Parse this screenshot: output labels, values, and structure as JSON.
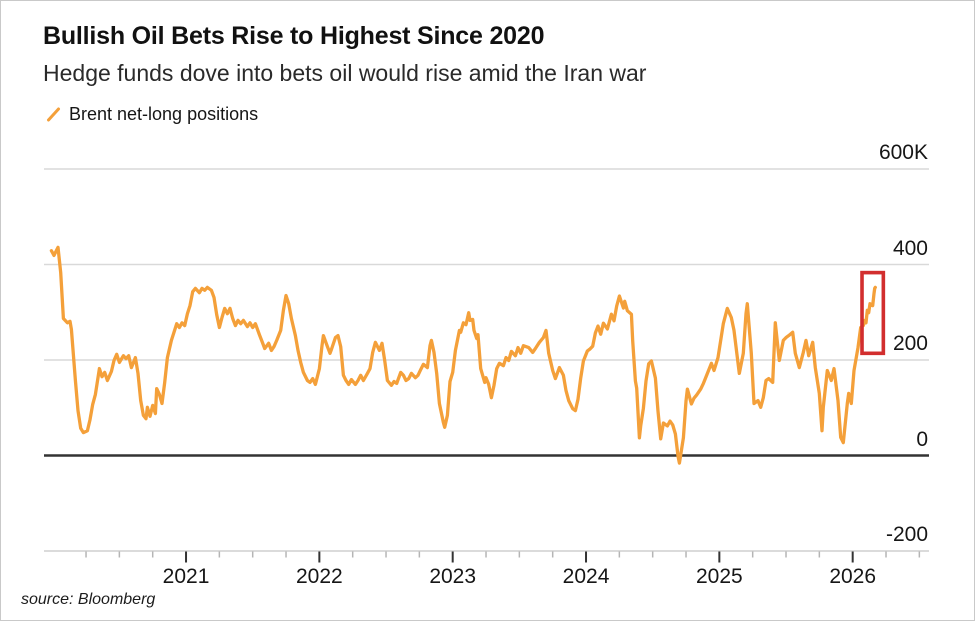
{
  "header": {
    "title": "Bullish Oil Bets Rise to Highest Since 2020",
    "subtitle": "Hedge funds dove into bets oil would rise amid the Iran war"
  },
  "legend": {
    "marker_icon": "slash-icon",
    "label": "Brent net-long positions"
  },
  "source": "source: Bloomberg",
  "colors": {
    "series": "#F4A03A",
    "highlight_box": "#D22E2E",
    "gridline": "#d9d9d9",
    "zero_line": "#333333",
    "axis_line": "#cfcfcf",
    "minor_tick": "#b5b5b5",
    "major_tick": "#333333"
  },
  "chart_data": {
    "type": "line",
    "title": "Bullish Oil Bets Rise to Highest Since 2020",
    "subtitle": "Hedge funds dove into bets oil would rise amid the Iran war",
    "unit": "thousand contracts (K)",
    "grid": "horizontal",
    "legend_position": "top-left",
    "xlim": [
      2019.95,
      2026.6
    ],
    "ylim": [
      -280,
      620
    ],
    "x_axis": {
      "tick_years": [
        2021,
        2022,
        2023,
        2024,
        2025,
        2026
      ],
      "minor_tick_interval_years": 0.25
    },
    "y_axis": {
      "ticks": [
        {
          "value": 600,
          "label": "600K"
        },
        {
          "value": 400,
          "label": "400"
        },
        {
          "value": 200,
          "label": "200"
        },
        {
          "value": 0,
          "label": "0"
        },
        {
          "value": -200,
          "label": "-200"
        }
      ]
    },
    "annotation": {
      "name": "recent-surge-highlight",
      "type": "highlight-box",
      "x_range": [
        2026.07,
        2026.23
      ],
      "value_range": [
        214,
        383
      ]
    },
    "series": [
      {
        "name": "Brent net-long positions",
        "points": [
          [
            2019.99,
            429
          ],
          [
            2020.01,
            419
          ],
          [
            2020.04,
            436
          ],
          [
            2020.06,
            383
          ],
          [
            2020.08,
            287
          ],
          [
            2020.11,
            278
          ],
          [
            2020.13,
            281
          ],
          [
            2020.14,
            264
          ],
          [
            2020.17,
            157
          ],
          [
            2020.19,
            94
          ],
          [
            2020.21,
            57
          ],
          [
            2020.23,
            48
          ],
          [
            2020.26,
            52
          ],
          [
            2020.28,
            75
          ],
          [
            2020.3,
            107
          ],
          [
            2020.32,
            128
          ],
          [
            2020.35,
            182
          ],
          [
            2020.37,
            165
          ],
          [
            2020.39,
            174
          ],
          [
            2020.41,
            157
          ],
          [
            2020.44,
            176
          ],
          [
            2020.46,
            199
          ],
          [
            2020.48,
            212
          ],
          [
            2020.5,
            195
          ],
          [
            2020.53,
            209
          ],
          [
            2020.55,
            203
          ],
          [
            2020.57,
            209
          ],
          [
            2020.59,
            184
          ],
          [
            2020.62,
            205
          ],
          [
            2020.64,
            172
          ],
          [
            2020.66,
            115
          ],
          [
            2020.68,
            84
          ],
          [
            2020.7,
            77
          ],
          [
            2020.71,
            101
          ],
          [
            2020.73,
            82
          ],
          [
            2020.75,
            105
          ],
          [
            2020.77,
            88
          ],
          [
            2020.78,
            140
          ],
          [
            2020.8,
            128
          ],
          [
            2020.82,
            109
          ],
          [
            2020.84,
            153
          ],
          [
            2020.86,
            205
          ],
          [
            2020.89,
            241
          ],
          [
            2020.91,
            258
          ],
          [
            2020.93,
            276
          ],
          [
            2020.95,
            268
          ],
          [
            2020.97,
            278
          ],
          [
            2020.99,
            272
          ],
          [
            2021.01,
            297
          ],
          [
            2021.03,
            314
          ],
          [
            2021.05,
            343
          ],
          [
            2021.07,
            350
          ],
          [
            2021.1,
            341
          ],
          [
            2021.12,
            350
          ],
          [
            2021.14,
            346
          ],
          [
            2021.16,
            352
          ],
          [
            2021.19,
            346
          ],
          [
            2021.21,
            331
          ],
          [
            2021.23,
            295
          ],
          [
            2021.25,
            268
          ],
          [
            2021.27,
            289
          ],
          [
            2021.29,
            308
          ],
          [
            2021.31,
            297
          ],
          [
            2021.33,
            308
          ],
          [
            2021.35,
            287
          ],
          [
            2021.37,
            272
          ],
          [
            2021.39,
            283
          ],
          [
            2021.41,
            276
          ],
          [
            2021.43,
            283
          ],
          [
            2021.46,
            270
          ],
          [
            2021.48,
            278
          ],
          [
            2021.5,
            268
          ],
          [
            2021.52,
            276
          ],
          [
            2021.55,
            253
          ],
          [
            2021.57,
            239
          ],
          [
            2021.59,
            224
          ],
          [
            2021.62,
            235
          ],
          [
            2021.64,
            220
          ],
          [
            2021.66,
            228
          ],
          [
            2021.68,
            241
          ],
          [
            2021.71,
            262
          ],
          [
            2021.73,
            304
          ],
          [
            2021.75,
            335
          ],
          [
            2021.77,
            318
          ],
          [
            2021.79,
            287
          ],
          [
            2021.82,
            251
          ],
          [
            2021.84,
            220
          ],
          [
            2021.86,
            195
          ],
          [
            2021.88,
            174
          ],
          [
            2021.91,
            157
          ],
          [
            2021.93,
            153
          ],
          [
            2021.95,
            161
          ],
          [
            2021.97,
            149
          ],
          [
            2022.0,
            182
          ],
          [
            2022.02,
            230
          ],
          [
            2022.03,
            251
          ],
          [
            2022.06,
            228
          ],
          [
            2022.08,
            214
          ],
          [
            2022.09,
            222
          ],
          [
            2022.12,
            247
          ],
          [
            2022.14,
            251
          ],
          [
            2022.16,
            228
          ],
          [
            2022.18,
            168
          ],
          [
            2022.2,
            157
          ],
          [
            2022.22,
            149
          ],
          [
            2022.24,
            159
          ],
          [
            2022.27,
            149
          ],
          [
            2022.29,
            157
          ],
          [
            2022.31,
            168
          ],
          [
            2022.33,
            157
          ],
          [
            2022.36,
            172
          ],
          [
            2022.38,
            182
          ],
          [
            2022.4,
            216
          ],
          [
            2022.42,
            237
          ],
          [
            2022.45,
            220
          ],
          [
            2022.47,
            235
          ],
          [
            2022.49,
            199
          ],
          [
            2022.51,
            157
          ],
          [
            2022.54,
            147
          ],
          [
            2022.56,
            155
          ],
          [
            2022.58,
            151
          ],
          [
            2022.61,
            174
          ],
          [
            2022.63,
            168
          ],
          [
            2022.65,
            157
          ],
          [
            2022.67,
            161
          ],
          [
            2022.69,
            172
          ],
          [
            2022.72,
            163
          ],
          [
            2022.74,
            168
          ],
          [
            2022.76,
            180
          ],
          [
            2022.78,
            191
          ],
          [
            2022.81,
            184
          ],
          [
            2022.83,
            230
          ],
          [
            2022.84,
            241
          ],
          [
            2022.86,
            216
          ],
          [
            2022.88,
            172
          ],
          [
            2022.9,
            109
          ],
          [
            2022.93,
            69
          ],
          [
            2022.94,
            59
          ],
          [
            2022.96,
            84
          ],
          [
            2022.98,
            155
          ],
          [
            2023.0,
            174
          ],
          [
            2023.02,
            220
          ],
          [
            2023.05,
            262
          ],
          [
            2023.06,
            258
          ],
          [
            2023.08,
            278
          ],
          [
            2023.1,
            274
          ],
          [
            2023.12,
            299
          ],
          [
            2023.13,
            283
          ],
          [
            2023.15,
            285
          ],
          [
            2023.16,
            262
          ],
          [
            2023.18,
            245
          ],
          [
            2023.19,
            253
          ],
          [
            2023.21,
            182
          ],
          [
            2023.24,
            153
          ],
          [
            2023.25,
            163
          ],
          [
            2023.27,
            149
          ],
          [
            2023.29,
            121
          ],
          [
            2023.31,
            147
          ],
          [
            2023.33,
            182
          ],
          [
            2023.35,
            193
          ],
          [
            2023.38,
            188
          ],
          [
            2023.4,
            205
          ],
          [
            2023.42,
            199
          ],
          [
            2023.44,
            218
          ],
          [
            2023.47,
            209
          ],
          [
            2023.49,
            226
          ],
          [
            2023.51,
            214
          ],
          [
            2023.53,
            230
          ],
          [
            2023.57,
            226
          ],
          [
            2023.6,
            216
          ],
          [
            2023.62,
            224
          ],
          [
            2023.65,
            237
          ],
          [
            2023.68,
            247
          ],
          [
            2023.7,
            262
          ],
          [
            2023.72,
            214
          ],
          [
            2023.75,
            178
          ],
          [
            2023.77,
            161
          ],
          [
            2023.8,
            184
          ],
          [
            2023.83,
            168
          ],
          [
            2023.85,
            136
          ],
          [
            2023.87,
            115
          ],
          [
            2023.9,
            98
          ],
          [
            2023.92,
            94
          ],
          [
            2023.94,
            118
          ],
          [
            2023.96,
            162
          ],
          [
            2023.98,
            198
          ],
          [
            2024.01,
            219
          ],
          [
            2024.03,
            223
          ],
          [
            2024.05,
            229
          ],
          [
            2024.07,
            257
          ],
          [
            2024.09,
            271
          ],
          [
            2024.11,
            254
          ],
          [
            2024.13,
            277
          ],
          [
            2024.16,
            265
          ],
          [
            2024.19,
            296
          ],
          [
            2024.21,
            282
          ],
          [
            2024.23,
            313
          ],
          [
            2024.25,
            334
          ],
          [
            2024.28,
            309
          ],
          [
            2024.29,
            323
          ],
          [
            2024.31,
            303
          ],
          [
            2024.34,
            296
          ],
          [
            2024.35,
            240
          ],
          [
            2024.37,
            156
          ],
          [
            2024.38,
            141
          ],
          [
            2024.4,
            37
          ],
          [
            2024.41,
            62
          ],
          [
            2024.43,
            99
          ],
          [
            2024.45,
            156
          ],
          [
            2024.47,
            192
          ],
          [
            2024.49,
            198
          ],
          [
            2024.52,
            162
          ],
          [
            2024.54,
            93
          ],
          [
            2024.56,
            35
          ],
          [
            2024.58,
            68
          ],
          [
            2024.61,
            62
          ],
          [
            2024.63,
            72
          ],
          [
            2024.65,
            64
          ],
          [
            2024.67,
            45
          ],
          [
            2024.69,
            -1
          ],
          [
            2024.7,
            -16
          ],
          [
            2024.73,
            37
          ],
          [
            2024.75,
            114
          ],
          [
            2024.76,
            139
          ],
          [
            2024.79,
            108
          ],
          [
            2024.81,
            120
          ],
          [
            2024.83,
            127
          ],
          [
            2024.86,
            139
          ],
          [
            2024.88,
            151
          ],
          [
            2024.91,
            172
          ],
          [
            2024.94,
            193
          ],
          [
            2024.96,
            178
          ],
          [
            2024.99,
            205
          ],
          [
            2025.01,
            241
          ],
          [
            2025.03,
            276
          ],
          [
            2025.06,
            308
          ],
          [
            2025.09,
            289
          ],
          [
            2025.11,
            262
          ],
          [
            2025.15,
            172
          ],
          [
            2025.18,
            214
          ],
          [
            2025.2,
            297
          ],
          [
            2025.21,
            318
          ],
          [
            2025.24,
            214
          ],
          [
            2025.26,
            109
          ],
          [
            2025.29,
            115
          ],
          [
            2025.31,
            101
          ],
          [
            2025.33,
            121
          ],
          [
            2025.35,
            157
          ],
          [
            2025.37,
            161
          ],
          [
            2025.4,
            153
          ],
          [
            2025.42,
            278
          ],
          [
            2025.45,
            199
          ],
          [
            2025.48,
            241
          ],
          [
            2025.5,
            247
          ],
          [
            2025.52,
            251
          ],
          [
            2025.55,
            258
          ],
          [
            2025.57,
            214
          ],
          [
            2025.6,
            184
          ],
          [
            2025.63,
            216
          ],
          [
            2025.65,
            241
          ],
          [
            2025.67,
            209
          ],
          [
            2025.7,
            237
          ],
          [
            2025.72,
            184
          ],
          [
            2025.75,
            130
          ],
          [
            2025.77,
            52
          ],
          [
            2025.78,
            101
          ],
          [
            2025.81,
            178
          ],
          [
            2025.84,
            157
          ],
          [
            2025.86,
            182
          ],
          [
            2025.89,
            115
          ],
          [
            2025.91,
            38
          ],
          [
            2025.93,
            27
          ],
          [
            2025.96,
            109
          ],
          [
            2025.97,
            130
          ],
          [
            2025.99,
            109
          ],
          [
            2026.01,
            178
          ],
          [
            2026.04,
            226
          ],
          [
            2026.06,
            268
          ],
          [
            2026.08,
            272
          ],
          [
            2026.09,
            283
          ],
          [
            2026.1,
            278
          ],
          [
            2026.11,
            304
          ],
          [
            2026.12,
            299
          ],
          [
            2026.13,
            318
          ],
          [
            2026.15,
            314
          ],
          [
            2026.16,
            339
          ],
          [
            2026.165,
            350
          ],
          [
            2026.17,
            352
          ]
        ]
      }
    ]
  }
}
